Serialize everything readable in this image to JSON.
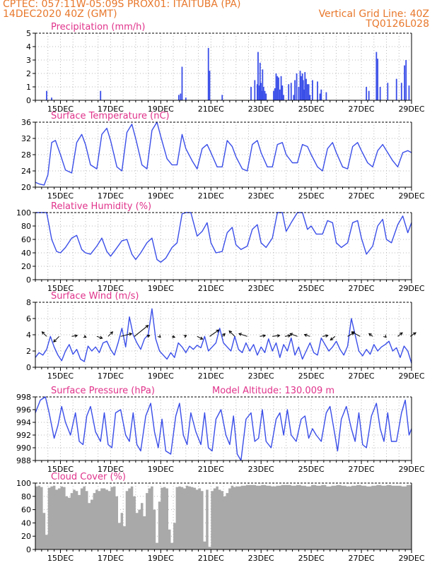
{
  "header": {
    "line1_left": "CPTEC:   057:11W-05:09S   PROX01: ITAITUBA (PA)",
    "line2_left": "14DEC2020 40Z (GMT)",
    "line2_right": "Vertical Grid Line: 40Z",
    "line3_right": "TQ0126L028"
  },
  "colors": {
    "header": "#e8782c",
    "title": "#e0338b",
    "series": "#3a4ee8",
    "cloud": "#a9a9a9",
    "grid": "#b8b8b8",
    "wind_arrow": "#000000"
  },
  "chart_data": [
    {
      "type": "bar",
      "title": "Precipitation (mm/h)",
      "x_tick_labels": [
        "15DEC",
        "17DEC",
        "19DEC",
        "21DEC",
        "23DEC",
        "25DEC",
        "27DEC",
        "29DEC"
      ],
      "ylim": [
        0,
        5
      ],
      "y_ticks": [
        0,
        1,
        2,
        3,
        4,
        5
      ],
      "x_range_days": [
        14,
        29
      ],
      "x": [
        14.45,
        14.65,
        16.6,
        19.72,
        19.79,
        19.85,
        20.0,
        20.9,
        20.95,
        21.45,
        22.6,
        22.75,
        22.85,
        22.88,
        22.93,
        22.96,
        23.0,
        23.03,
        23.06,
        23.1,
        23.15,
        23.2,
        23.5,
        23.55,
        23.6,
        23.65,
        23.7,
        23.75,
        23.8,
        23.85,
        23.9,
        24.1,
        24.2,
        24.3,
        24.35,
        24.42,
        24.5,
        24.56,
        24.6,
        24.65,
        24.68,
        24.72,
        24.75,
        24.8,
        24.85,
        24.9,
        24.95,
        25.05,
        25.25,
        25.35,
        25.4,
        25.6,
        27.2,
        27.3,
        27.6,
        27.65,
        27.75,
        28.05,
        28.4,
        28.6,
        28.72,
        28.78,
        28.9
      ],
      "values": [
        0.7,
        0.2,
        0.7,
        0.4,
        0.5,
        2.5,
        0.2,
        3.9,
        2.2,
        0.4,
        1.0,
        1.5,
        1.2,
        3.6,
        1.1,
        2.8,
        1.3,
        0.7,
        2.3,
        1.0,
        0.7,
        0.5,
        0.7,
        0.9,
        2.0,
        1.8,
        1.7,
        0.8,
        1.8,
        1.1,
        0.4,
        1.2,
        1.3,
        0.4,
        1.5,
        2.0,
        1.0,
        2.2,
        1.8,
        2.0,
        1.5,
        0.8,
        2.1,
        1.6,
        1.2,
        1.2,
        0.4,
        1.5,
        1.4,
        0.5,
        0.8,
        0.6,
        1.0,
        0.7,
        3.6,
        3.1,
        1.0,
        1.3,
        1.6,
        1.3,
        2.6,
        3.0,
        1.1
      ]
    },
    {
      "type": "line",
      "title": "Surface Temperature (nC)",
      "x_tick_labels": [
        "15DEC",
        "17DEC",
        "19DEC",
        "21DEC",
        "23DEC",
        "25DEC",
        "27DEC",
        "29DEC"
      ],
      "ylim": [
        20,
        36
      ],
      "y_ticks": [
        20,
        24,
        28,
        32,
        36
      ],
      "x_range_days": [
        14,
        29
      ],
      "x": [
        14.0,
        14.15,
        14.35,
        14.5,
        14.65,
        14.8,
        15.0,
        15.2,
        15.45,
        15.65,
        15.85,
        16.0,
        16.2,
        16.45,
        16.65,
        16.85,
        17.0,
        17.25,
        17.45,
        17.65,
        17.85,
        18.0,
        18.25,
        18.45,
        18.65,
        18.85,
        19.0,
        19.25,
        19.45,
        19.65,
        19.85,
        20.0,
        20.25,
        20.45,
        20.65,
        20.85,
        21.0,
        21.25,
        21.45,
        21.65,
        21.85,
        22.0,
        22.25,
        22.45,
        22.65,
        22.85,
        23.0,
        23.25,
        23.45,
        23.65,
        23.85,
        24.0,
        24.25,
        24.45,
        24.65,
        24.85,
        25.0,
        25.25,
        25.45,
        25.65,
        25.85,
        26.0,
        26.25,
        26.45,
        26.65,
        26.85,
        27.0,
        27.25,
        27.45,
        27.65,
        27.85,
        28.0,
        28.25,
        28.45,
        28.65,
        28.85,
        29.0
      ],
      "values": [
        21.2,
        20.8,
        20.5,
        23.0,
        31.0,
        31.5,
        28.0,
        24.2,
        23.5,
        31.0,
        33.0,
        30.5,
        25.5,
        24.5,
        33.0,
        34.5,
        31.5,
        25.0,
        24.0,
        33.5,
        35.5,
        32.0,
        25.5,
        24.5,
        34.0,
        36.0,
        32.5,
        27.0,
        25.5,
        25.5,
        33.0,
        29.5,
        26.5,
        24.5,
        29.5,
        30.5,
        28.5,
        25.0,
        25.0,
        31.5,
        30.0,
        27.5,
        24.5,
        24.0,
        30.5,
        31.5,
        28.5,
        25.0,
        25.0,
        30.5,
        31.0,
        28.0,
        26.0,
        26.0,
        30.5,
        30.0,
        28.0,
        25.0,
        24.0,
        29.5,
        31.0,
        28.5,
        25.0,
        24.5,
        30.0,
        31.0,
        29.0,
        26.0,
        25.0,
        29.0,
        30.5,
        29.0,
        26.5,
        25.0,
        28.5,
        29.0,
        28.5
      ]
    },
    {
      "type": "line",
      "title": "Relative Humidity (%)",
      "x_tick_labels": [
        "15DEC",
        "17DEC",
        "19DEC",
        "21DEC",
        "23DEC",
        "25DEC",
        "27DEC",
        "29DEC"
      ],
      "ylim": [
        0,
        100
      ],
      "y_ticks": [
        0,
        20,
        40,
        60,
        80,
        100
      ],
      "x_range_days": [
        14,
        29
      ],
      "x": [
        14.0,
        14.2,
        14.45,
        14.65,
        14.85,
        15.0,
        15.2,
        15.45,
        15.65,
        15.85,
        16.0,
        16.2,
        16.45,
        16.65,
        16.85,
        17.0,
        17.2,
        17.45,
        17.65,
        17.85,
        18.0,
        18.2,
        18.45,
        18.65,
        18.85,
        19.0,
        19.2,
        19.45,
        19.65,
        19.85,
        20.0,
        20.2,
        20.45,
        20.65,
        20.85,
        21.0,
        21.2,
        21.45,
        21.65,
        21.85,
        22.0,
        22.2,
        22.45,
        22.65,
        22.85,
        23.0,
        23.2,
        23.45,
        23.65,
        23.85,
        24.0,
        24.2,
        24.45,
        24.65,
        24.85,
        25.0,
        25.2,
        25.45,
        25.65,
        25.85,
        26.0,
        26.2,
        26.45,
        26.65,
        26.85,
        27.0,
        27.2,
        27.45,
        27.65,
        27.85,
        28.0,
        28.2,
        28.45,
        28.65,
        28.85,
        29.0
      ],
      "values": [
        100,
        100,
        100,
        60,
        42,
        40,
        48,
        62,
        66,
        45,
        40,
        38,
        50,
        62,
        42,
        35,
        45,
        58,
        60,
        38,
        30,
        40,
        55,
        62,
        30,
        26,
        32,
        48,
        55,
        98,
        100,
        100,
        65,
        72,
        85,
        55,
        40,
        42,
        70,
        78,
        52,
        45,
        50,
        75,
        82,
        55,
        48,
        62,
        100,
        100,
        72,
        85,
        100,
        100,
        75,
        80,
        68,
        68,
        88,
        85,
        55,
        48,
        55,
        85,
        88,
        62,
        38,
        50,
        80,
        90,
        60,
        55,
        82,
        95,
        70,
        85
      ]
    },
    {
      "type": "line",
      "title": "Surface Wind (m/s)",
      "x_tick_labels": [
        "15DEC",
        "17DEC",
        "19DEC",
        "21DEC",
        "23DEC",
        "25DEC",
        "27DEC",
        "29DEC"
      ],
      "ylim": [
        0,
        8
      ],
      "y_ticks": [
        0,
        2,
        4,
        6,
        8
      ],
      "x_range_days": [
        14,
        29
      ],
      "x": [
        14.0,
        14.15,
        14.3,
        14.45,
        14.6,
        14.75,
        14.9,
        15.05,
        15.2,
        15.35,
        15.5,
        15.65,
        15.8,
        15.95,
        16.1,
        16.25,
        16.4,
        16.55,
        16.7,
        16.85,
        17.0,
        17.15,
        17.3,
        17.45,
        17.6,
        17.75,
        17.9,
        18.05,
        18.2,
        18.35,
        18.5,
        18.65,
        18.8,
        18.95,
        19.1,
        19.25,
        19.4,
        19.55,
        19.7,
        19.85,
        20.0,
        20.15,
        20.3,
        20.45,
        20.6,
        20.75,
        20.9,
        21.05,
        21.2,
        21.35,
        21.5,
        21.65,
        21.8,
        21.95,
        22.1,
        22.25,
        22.4,
        22.55,
        22.7,
        22.85,
        23.0,
        23.15,
        23.3,
        23.45,
        23.6,
        23.75,
        23.9,
        24.05,
        24.2,
        24.35,
        24.5,
        24.65,
        24.8,
        24.95,
        25.1,
        25.25,
        25.4,
        25.55,
        25.7,
        25.85,
        26.0,
        26.15,
        26.3,
        26.45,
        26.6,
        26.75,
        26.9,
        27.05,
        27.2,
        27.35,
        27.5,
        27.65,
        27.8,
        27.95,
        28.1,
        28.25,
        28.4,
        28.55,
        28.7,
        28.85,
        29.0
      ],
      "values": [
        1.2,
        1.8,
        1.5,
        2.2,
        3.8,
        2.5,
        1.5,
        0.8,
        2.0,
        2.8,
        1.6,
        2.2,
        1.0,
        0.7,
        2.6,
        2.0,
        2.5,
        1.8,
        3.0,
        3.2,
        2.2,
        1.5,
        3.0,
        4.8,
        2.5,
        6.2,
        4.0,
        3.0,
        2.2,
        3.5,
        4.0,
        7.2,
        3.5,
        2.0,
        1.5,
        1.0,
        1.8,
        1.2,
        3.0,
        2.5,
        1.8,
        2.6,
        2.2,
        2.7,
        2.4,
        3.8,
        2.0,
        2.5,
        3.0,
        4.8,
        3.0,
        2.5,
        2.0,
        3.8,
        2.2,
        1.8,
        3.0,
        2.0,
        2.8,
        1.5,
        2.5,
        1.8,
        3.5,
        2.0,
        3.0,
        1.2,
        2.8,
        2.0,
        3.6,
        1.5,
        2.5,
        1.0,
        2.0,
        3.0,
        1.8,
        1.5,
        3.6,
        2.8,
        2.0,
        2.5,
        3.2,
        2.2,
        1.5,
        2.6,
        6.0,
        4.0,
        2.0,
        1.4,
        2.2,
        1.6,
        2.8,
        2.0,
        2.5,
        2.8,
        3.2,
        2.0,
        2.4,
        1.2,
        2.6,
        2.0,
        0.5
      ]
    },
    {
      "type": "line",
      "title": "Surface Pressure (hPa)",
      "annotation": "Model Altitude: 130.009 m",
      "x_tick_labels": [
        "15DEC",
        "17DEC",
        "19DEC",
        "21DEC",
        "23DEC",
        "25DEC",
        "27DEC",
        "29DEC"
      ],
      "ylim": [
        988,
        998
      ],
      "y_ticks": [
        988,
        990,
        992,
        994,
        996,
        998
      ],
      "x_range_days": [
        14,
        29
      ],
      "x": [
        14.0,
        14.2,
        14.4,
        14.55,
        14.75,
        14.9,
        15.05,
        15.2,
        15.4,
        15.6,
        15.75,
        15.9,
        16.05,
        16.2,
        16.4,
        16.6,
        16.75,
        16.9,
        17.05,
        17.2,
        17.4,
        17.6,
        17.75,
        17.9,
        18.05,
        18.2,
        18.4,
        18.6,
        18.75,
        18.9,
        19.05,
        19.2,
        19.4,
        19.6,
        19.75,
        19.9,
        20.05,
        20.2,
        20.4,
        20.6,
        20.75,
        20.9,
        21.05,
        21.2,
        21.4,
        21.6,
        21.75,
        21.9,
        22.05,
        22.2,
        22.4,
        22.6,
        22.75,
        22.9,
        23.05,
        23.2,
        23.4,
        23.6,
        23.75,
        23.9,
        24.05,
        24.2,
        24.4,
        24.6,
        24.75,
        24.9,
        25.05,
        25.2,
        25.4,
        25.6,
        25.75,
        25.9,
        26.05,
        26.2,
        26.4,
        26.6,
        26.75,
        26.9,
        27.05,
        27.2,
        27.4,
        27.6,
        27.75,
        27.9,
        28.05,
        28.2,
        28.4,
        28.6,
        28.75,
        28.9,
        29.0
      ],
      "values": [
        995.5,
        997.5,
        998.0,
        995.5,
        991.5,
        993.5,
        996.5,
        994.0,
        992.0,
        995.5,
        991.0,
        990.5,
        995.0,
        996.5,
        992.5,
        991.0,
        995.5,
        990.5,
        990.0,
        995.5,
        996.0,
        992.0,
        991.0,
        995.5,
        990.5,
        989.5,
        995.0,
        997.0,
        992.5,
        990.0,
        994.5,
        989.5,
        989.0,
        995.0,
        997.0,
        992.0,
        990.5,
        995.5,
        992.5,
        990.5,
        995.5,
        990.0,
        989.5,
        994.5,
        996.0,
        992.0,
        990.5,
        995.0,
        989.0,
        988.0,
        994.5,
        995.5,
        991.0,
        991.5,
        996.0,
        991.0,
        990.0,
        994.5,
        995.5,
        992.0,
        996.0,
        992.0,
        991.0,
        994.5,
        995.0,
        991.5,
        993.0,
        992.0,
        991.0,
        995.5,
        996.5,
        993.0,
        989.5,
        994.5,
        996.5,
        993.0,
        991.0,
        995.5,
        990.5,
        990.0,
        995.0,
        997.0,
        993.0,
        991.0,
        995.5,
        991.0,
        991.0,
        995.5,
        997.5,
        992.0,
        993.0
      ]
    },
    {
      "type": "area",
      "title": "Cloud Cover (%)",
      "x_tick_labels": [
        "15DEC",
        "17DEC",
        "19DEC",
        "21DEC",
        "23DEC",
        "25DEC",
        "27DEC",
        "29DEC"
      ],
      "ylim": [
        0,
        100
      ],
      "y_ticks": [
        0,
        20,
        40,
        60,
        80,
        100
      ],
      "x_range_days": [
        14,
        29
      ],
      "x": [
        14.0,
        14.1,
        14.2,
        14.3,
        14.4,
        14.5,
        14.6,
        14.7,
        14.8,
        14.9,
        15.0,
        15.1,
        15.2,
        15.3,
        15.4,
        15.5,
        15.6,
        15.7,
        15.8,
        15.9,
        16.0,
        16.1,
        16.2,
        16.3,
        16.4,
        16.5,
        16.6,
        16.7,
        16.8,
        16.9,
        17.0,
        17.1,
        17.2,
        17.3,
        17.4,
        17.5,
        17.6,
        17.7,
        17.8,
        17.9,
        18.0,
        18.1,
        18.2,
        18.3,
        18.4,
        18.5,
        18.6,
        18.7,
        18.8,
        18.9,
        19.0,
        19.1,
        19.2,
        19.3,
        19.4,
        19.5,
        19.6,
        19.7,
        19.8,
        19.9,
        20.0,
        20.1,
        20.2,
        20.3,
        20.4,
        20.5,
        20.6,
        20.7,
        20.8,
        20.9,
        21.0,
        21.1,
        21.2,
        21.3,
        21.4,
        21.5,
        21.6,
        21.7,
        21.8,
        21.9,
        22.0,
        22.2,
        22.4,
        22.6,
        22.8,
        23.0,
        23.2,
        23.4,
        23.6,
        23.8,
        24.0,
        24.2,
        24.4,
        24.6,
        24.8,
        25.0,
        25.2,
        25.4,
        25.6,
        25.8,
        26.0,
        26.2,
        26.4,
        26.6,
        26.8,
        27.0,
        27.2,
        27.4,
        27.6,
        27.8,
        28.0,
        28.2,
        28.4,
        28.6,
        28.8,
        29.0
      ],
      "values": [
        95,
        96,
        94,
        55,
        22,
        93,
        95,
        96,
        90,
        92,
        95,
        94,
        80,
        78,
        85,
        90,
        88,
        82,
        92,
        95,
        88,
        70,
        75,
        85,
        90,
        88,
        92,
        92,
        90,
        88,
        94,
        95,
        80,
        40,
        55,
        35,
        88,
        92,
        95,
        80,
        55,
        60,
        70,
        50,
        85,
        92,
        95,
        60,
        10,
        72,
        93,
        94,
        92,
        30,
        10,
        40,
        94,
        95,
        94,
        92,
        96,
        95,
        94,
        93,
        90,
        92,
        88,
        12,
        90,
        4,
        88,
        92,
        95,
        90,
        88,
        80,
        85,
        92,
        96,
        94,
        95,
        96,
        97,
        97,
        96,
        97,
        96,
        95,
        96,
        97,
        97,
        96,
        97,
        96,
        95,
        97,
        96,
        97,
        95,
        96,
        97,
        96,
        95,
        96,
        97,
        96,
        95,
        96,
        97,
        96,
        97,
        96,
        96,
        95,
        97,
        96
      ]
    }
  ],
  "wind_arrows": {
    "x": [
      14.45,
      14.95,
      15.45,
      15.95,
      16.45,
      16.9,
      17.4,
      17.95,
      18.45,
      18.95,
      19.45,
      19.95,
      20.45,
      20.95,
      21.45,
      21.95,
      22.45,
      22.95,
      23.45,
      23.95,
      24.45,
      24.95,
      25.45,
      25.95,
      26.45,
      26.95,
      27.45,
      27.95,
      28.45,
      28.95
    ],
    "u": [
      -0.5,
      -0.6,
      0.6,
      0.2,
      0.6,
      0.5,
      1.2,
      1.5,
      0.3,
      0.1,
      0.3,
      0.2,
      0.6,
      1.0,
      0.3,
      -0.6,
      -0.9,
      0.6,
      0.8,
      0.6,
      -0.8,
      -0.6,
      0.6,
      -0.5,
      0.7,
      -0.9,
      -0.4,
      0.1,
      0.5,
      0.6
    ],
    "v": [
      0.5,
      -0.6,
      0.1,
      -0.1,
      -0.2,
      0.5,
      0.3,
      1.2,
      0.1,
      -0.1,
      -0.1,
      0.1,
      -0.3,
      0.7,
      0.3,
      0.6,
      0.3,
      0.1,
      0.1,
      0.1,
      0.3,
      0.2,
      0.1,
      -0.4,
      0.4,
      0.5,
      0.3,
      -0.1,
      0.4,
      0.4
    ]
  }
}
